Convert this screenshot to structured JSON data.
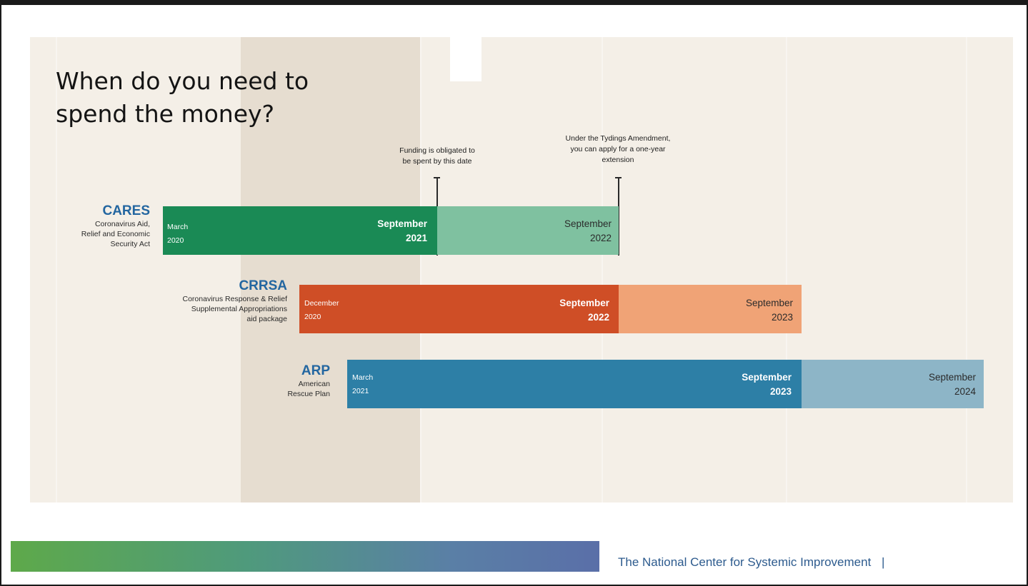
{
  "slide": {
    "title_line1": "When do you need to",
    "title_line2": "spend the money?"
  },
  "callouts": {
    "obligation": {
      "line1": "Funding is obligated to",
      "line2": "be spent by this date"
    },
    "tydings": {
      "line1": "Under the Tydings Amendment,",
      "line2": "you can apply for a one-year",
      "line3": "extension"
    }
  },
  "programs": [
    {
      "acronym": "CARES",
      "desc": [
        "Coronavirus Aid,",
        "Relief and Economic",
        "Security Act"
      ],
      "start_month": "March",
      "start_year": "2020",
      "end_month": "September",
      "end_year": "2021",
      "ext_month": "September",
      "ext_year": "2022",
      "color_main": "#1a8a55",
      "color_ext": "#7fc1a0"
    },
    {
      "acronym": "CRRSA",
      "desc": [
        "Coronavirus Response & Relief",
        "Supplemental Appropriations",
        "aid package"
      ],
      "start_month": "December",
      "start_year": "2020",
      "end_month": "September",
      "end_year": "2022",
      "ext_month": "September",
      "ext_year": "2023",
      "color_main": "#cf4e26",
      "color_ext": "#f0a376"
    },
    {
      "acronym": "ARP",
      "desc": [
        "American",
        "Rescue Plan"
      ],
      "start_month": "March",
      "start_year": "2021",
      "end_month": "September",
      "end_year": "2023",
      "ext_month": "September",
      "ext_year": "2024",
      "color_main": "#2d7fa6",
      "color_ext": "#8db5c7"
    }
  ],
  "footer": {
    "org": "The National Center for Systemic Improvement",
    "separator": "|"
  },
  "colors": {
    "panel_bg": "#f4efe7",
    "shade_bg": "#e6ddd0",
    "acronym": "#2366a0",
    "footer_text": "#2d5b8e"
  }
}
